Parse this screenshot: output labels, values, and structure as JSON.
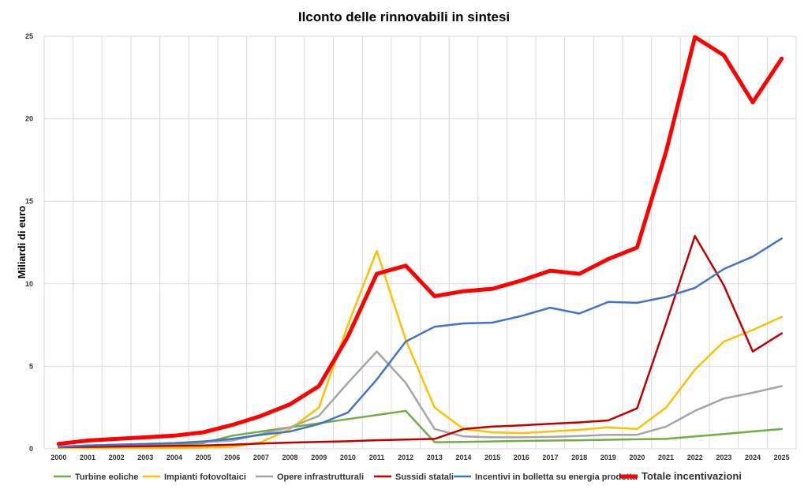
{
  "chart_data": {
    "type": "line",
    "title": "Ilconto delle rinnovabili in sintesi",
    "xlabel": "",
    "ylabel": "Miliardi di euro",
    "ylim": [
      0,
      25
    ],
    "yticks": [
      0,
      5,
      10,
      15,
      20,
      25
    ],
    "grid": true,
    "legend": "bottom",
    "x": [
      "2000",
      "2001",
      "2002",
      "2003",
      "2004",
      "2005",
      "2006",
      "2007",
      "2008",
      "2009",
      "2010",
      "2011",
      "2012",
      "2013",
      "2014",
      "2015",
      "2016",
      "2017",
      "2018",
      "2019",
      "2020",
      "2021",
      "2022",
      "2023",
      "2024",
      "2025"
    ],
    "series": [
      {
        "name": "Turbine eoliche",
        "color": "#70ad47",
        "values": [
          0.05,
          0.1,
          0.15,
          0.2,
          0.25,
          0.35,
          0.8,
          1.05,
          1.3,
          1.55,
          1.8,
          2.05,
          2.3,
          0.4,
          0.42,
          0.45,
          0.48,
          0.5,
          0.52,
          0.55,
          0.58,
          0.6,
          0.75,
          0.9,
          1.05,
          1.2
        ]
      },
      {
        "name": "Impianti fotovoltaici",
        "color": "#ffc000",
        "values": [
          0.05,
          0.05,
          0.05,
          0.05,
          0.05,
          0.08,
          0.12,
          0.4,
          1.2,
          2.5,
          7.5,
          12.0,
          6.6,
          2.5,
          1.2,
          1.0,
          0.95,
          1.05,
          1.15,
          1.3,
          1.2,
          2.5,
          4.8,
          6.5,
          7.2,
          8.0
        ]
      },
      {
        "name": "Opere infrastrutturali",
        "color": "#a5a5a5",
        "values": [
          0.15,
          0.2,
          0.25,
          0.3,
          0.35,
          0.4,
          0.5,
          0.9,
          1.3,
          2.0,
          4.0,
          5.9,
          4.0,
          1.2,
          0.75,
          0.7,
          0.7,
          0.72,
          0.78,
          0.85,
          0.85,
          1.35,
          2.3,
          3.05,
          3.4,
          3.8
        ]
      },
      {
        "name": "Sussidi statali",
        "color": "#c00000",
        "values": [
          0.1,
          0.12,
          0.14,
          0.16,
          0.18,
          0.2,
          0.25,
          0.32,
          0.38,
          0.42,
          0.46,
          0.52,
          0.56,
          0.6,
          1.2,
          1.35,
          1.42,
          1.52,
          1.6,
          1.72,
          2.45,
          7.6,
          12.9,
          9.9,
          5.9,
          7.0
        ]
      },
      {
        "name": "Incentivi in bolletta su energia prodotta",
        "color": "#4472c4",
        "values": [
          0.1,
          0.2,
          0.25,
          0.3,
          0.35,
          0.45,
          0.6,
          0.85,
          1.05,
          1.5,
          2.2,
          4.2,
          6.5,
          7.4,
          7.6,
          7.65,
          8.05,
          8.55,
          8.2,
          8.9,
          8.85,
          9.2,
          9.75,
          10.9,
          11.65,
          12.75
        ]
      },
      {
        "name": "Totale incentivazioni",
        "color": "#ff0000",
        "values": [
          0.3,
          0.5,
          0.6,
          0.7,
          0.8,
          1.0,
          1.45,
          2.0,
          2.7,
          3.8,
          6.8,
          10.6,
          11.1,
          9.25,
          9.55,
          9.7,
          10.2,
          10.8,
          10.6,
          11.5,
          12.2,
          18.0,
          24.95,
          23.85,
          21.0,
          23.65
        ]
      }
    ]
  }
}
